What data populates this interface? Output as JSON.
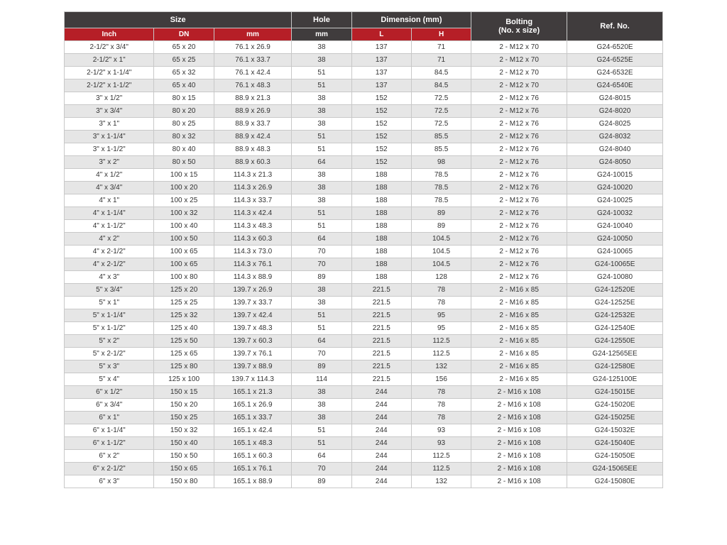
{
  "table": {
    "type": "table",
    "colors": {
      "header_dark_bg": "#403c3d",
      "header_red_bg": "#b61f27",
      "header_text": "#ffffff",
      "row_odd_bg": "#ffffff",
      "row_even_bg": "#e6e6e6",
      "border": "#c8c8c8",
      "body_text": "#333333"
    },
    "typography": {
      "header_fontsize_pt": 11,
      "subheader_fontsize_pt": 10,
      "body_fontsize_pt": 10,
      "font_family": "Arial"
    },
    "column_widths_pct": [
      15,
      10,
      13,
      10,
      10,
      10,
      16,
      16
    ],
    "header_top": {
      "size": "Size",
      "hole": "Hole",
      "dimension": "Dimension (mm)",
      "bolting": "Bolting\n(No. x size)",
      "ref": "Ref. No."
    },
    "header_sub": {
      "inch": "Inch",
      "dn": "DN",
      "mm": "mm",
      "hole_mm": "mm",
      "L": "L",
      "H": "H"
    },
    "columns": [
      "inch",
      "dn",
      "mm",
      "hole",
      "L",
      "H",
      "bolting",
      "ref"
    ],
    "rows": [
      [
        "2-1/2\" x 3/4\"",
        "65 x 20",
        "76.1 x 26.9",
        "38",
        "137",
        "71",
        "2 - M12 x 70",
        "G24-6520E"
      ],
      [
        "2-1/2\" x 1\"",
        "65 x 25",
        "76.1 x 33.7",
        "38",
        "137",
        "71",
        "2 - M12 x 70",
        "G24-6525E"
      ],
      [
        "2-1/2\" x 1-1/4\"",
        "65 x 32",
        "76.1 x 42.4",
        "51",
        "137",
        "84.5",
        "2 - M12 x 70",
        "G24-6532E"
      ],
      [
        "2-1/2\" x 1-1/2\"",
        "65 x 40",
        "76.1 x 48.3",
        "51",
        "137",
        "84.5",
        "2 - M12 x 70",
        "G24-6540E"
      ],
      [
        "3\" x 1/2\"",
        "80 x 15",
        "88.9 x 21.3",
        "38",
        "152",
        "72.5",
        "2 - M12 x 76",
        "G24-8015"
      ],
      [
        "3\" x 3/4\"",
        "80 x 20",
        "88.9 x 26.9",
        "38",
        "152",
        "72.5",
        "2 - M12 x 76",
        "G24-8020"
      ],
      [
        "3\" x 1\"",
        "80 x 25",
        "88.9 x 33.7",
        "38",
        "152",
        "72.5",
        "2 - M12 x 76",
        "G24-8025"
      ],
      [
        "3\" x 1-1/4\"",
        "80 x 32",
        "88.9 x 42.4",
        "51",
        "152",
        "85.5",
        "2 - M12 x 76",
        "G24-8032"
      ],
      [
        "3\" x 1-1/2\"",
        "80 x 40",
        "88.9 x 48.3",
        "51",
        "152",
        "85.5",
        "2 - M12 x 76",
        "G24-8040"
      ],
      [
        "3\" x 2\"",
        "80 x 50",
        "88.9 x 60.3",
        "64",
        "152",
        "98",
        "2 - M12 x 76",
        "G24-8050"
      ],
      [
        "4\" x 1/2\"",
        "100 x 15",
        "114.3 x 21.3",
        "38",
        "188",
        "78.5",
        "2 - M12 x 76",
        "G24-10015"
      ],
      [
        "4\" x 3/4\"",
        "100 x 20",
        "114.3 x 26.9",
        "38",
        "188",
        "78.5",
        "2 - M12 x 76",
        "G24-10020"
      ],
      [
        "4\" x 1\"",
        "100 x 25",
        "114.3 x 33.7",
        "38",
        "188",
        "78.5",
        "2 - M12 x 76",
        "G24-10025"
      ],
      [
        "4\" x 1-1/4\"",
        "100 x 32",
        "114.3 x 42.4",
        "51",
        "188",
        "89",
        "2 - M12 x 76",
        "G24-10032"
      ],
      [
        "4\" x 1-1/2\"",
        "100 x 40",
        "114.3 x 48.3",
        "51",
        "188",
        "89",
        "2 - M12 x 76",
        "G24-10040"
      ],
      [
        "4\" x 2\"",
        "100 x 50",
        "114.3 x 60.3",
        "64",
        "188",
        "104.5",
        "2 - M12 x 76",
        "G24-10050"
      ],
      [
        "4\" x 2-1/2\"",
        "100 x 65",
        "114.3 x 73.0",
        "70",
        "188",
        "104.5",
        "2 - M12 x 76",
        "G24-10065"
      ],
      [
        "4\" x 2-1/2\"",
        "100 x 65",
        "114.3 x 76.1",
        "70",
        "188",
        "104.5",
        "2 - M12 x 76",
        "G24-10065E"
      ],
      [
        "4\" x 3\"",
        "100 x 80",
        "114.3 x 88.9",
        "89",
        "188",
        "128",
        "2 - M12 x 76",
        "G24-10080"
      ],
      [
        "5\" x 3/4\"",
        "125 x 20",
        "139.7 x 26.9",
        "38",
        "221.5",
        "78",
        "2 - M16 x 85",
        "G24-12520E"
      ],
      [
        "5\" x 1\"",
        "125 x 25",
        "139.7 x 33.7",
        "38",
        "221.5",
        "78",
        "2 - M16 x 85",
        "G24-12525E"
      ],
      [
        "5\" x 1-1/4\"",
        "125 x 32",
        "139.7 x 42.4",
        "51",
        "221.5",
        "95",
        "2 - M16 x 85",
        "G24-12532E"
      ],
      [
        "5\" x 1-1/2\"",
        "125 x 40",
        "139.7 x 48.3",
        "51",
        "221.5",
        "95",
        "2 - M16 x 85",
        "G24-12540E"
      ],
      [
        "5\" x 2\"",
        "125 x 50",
        "139.7 x 60.3",
        "64",
        "221.5",
        "112.5",
        "2 - M16 x 85",
        "G24-12550E"
      ],
      [
        "5\" x 2-1/2\"",
        "125 x 65",
        "139.7 x 76.1",
        "70",
        "221.5",
        "112.5",
        "2 - M16 x 85",
        "G24-12565EE"
      ],
      [
        "5\" x 3\"",
        "125 x 80",
        "139.7 x 88.9",
        "89",
        "221.5",
        "132",
        "2 - M16 x 85",
        "G24-12580E"
      ],
      [
        "5\" x 4\"",
        "125 x 100",
        "139.7 x 114.3",
        "114",
        "221.5",
        "156",
        "2 - M16 x 85",
        "G24-125100E"
      ],
      [
        "6\" x 1/2\"",
        "150 x 15",
        "165.1 x 21.3",
        "38",
        "244",
        "78",
        "2 - M16 x 108",
        "G24-15015E"
      ],
      [
        "6\" x 3/4\"",
        "150 x 20",
        "165.1 x 26.9",
        "38",
        "244",
        "78",
        "2 - M16 x 108",
        "G24-15020E"
      ],
      [
        "6\" x 1\"",
        "150 x 25",
        "165.1 x 33.7",
        "38",
        "244",
        "78",
        "2 - M16 x 108",
        "G24-15025E"
      ],
      [
        "6\" x 1-1/4\"",
        "150 x 32",
        "165.1 x 42.4",
        "51",
        "244",
        "93",
        "2 - M16 x 108",
        "G24-15032E"
      ],
      [
        "6\" x 1-1/2\"",
        "150 x 40",
        "165.1 x 48.3",
        "51",
        "244",
        "93",
        "2 - M16 x 108",
        "G24-15040E"
      ],
      [
        "6\" x 2\"",
        "150 x 50",
        "165.1 x 60.3",
        "64",
        "244",
        "112.5",
        "2 - M16 x 108",
        "G24-15050E"
      ],
      [
        "6\" x 2-1/2\"",
        "150 x 65",
        "165.1 x 76.1",
        "70",
        "244",
        "112.5",
        "2 - M16 x 108",
        "G24-15065EE"
      ],
      [
        "6\" x 3\"",
        "150 x 80",
        "165.1 x 88.9",
        "89",
        "244",
        "132",
        "2 - M16 x 108",
        "G24-15080E"
      ]
    ]
  }
}
